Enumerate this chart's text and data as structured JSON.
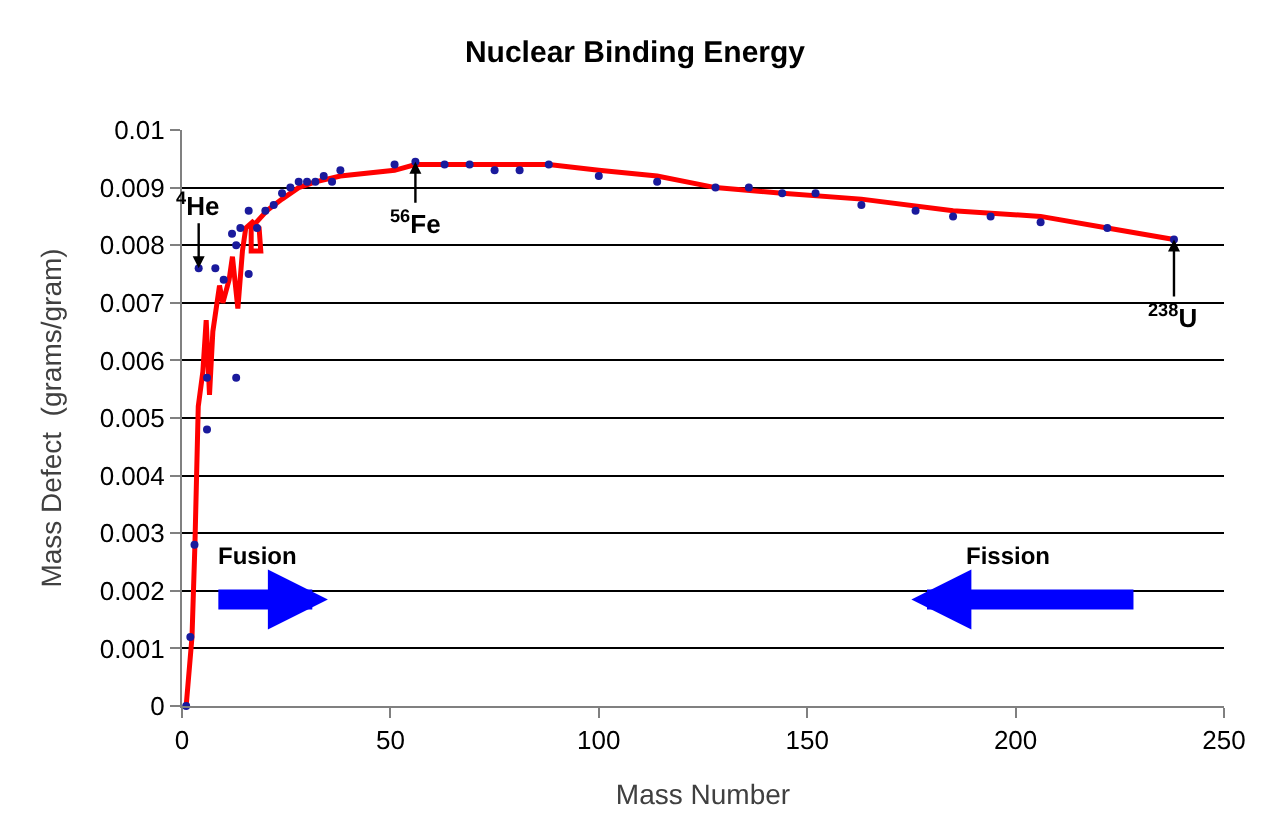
{
  "chart_data": {
    "type": "scatter",
    "title": "Nuclear Binding Energy",
    "xlabel": "Mass Number",
    "ylabel": "Mass Defect  (grams/gram)",
    "series": [
      {
        "color": "#1a1a9c",
        "marker": "circle",
        "x": [
          1,
          2,
          3,
          4,
          6,
          6,
          8,
          10,
          12,
          13,
          13,
          14,
          16,
          16,
          18,
          20,
          22,
          24,
          26,
          28,
          30,
          32,
          34,
          36,
          38,
          51,
          56,
          63,
          69,
          75,
          81,
          88,
          100,
          114,
          128,
          136,
          144,
          152,
          163,
          176,
          185,
          194,
          206,
          222,
          238
        ],
        "values": [
          0,
          0.0012,
          0.0028,
          0.0076,
          0.0057,
          0.0048,
          0.0076,
          0.0074,
          0.0082,
          0.0057,
          0.008,
          0.0083,
          0.0086,
          0.0075,
          0.0083,
          0.0086,
          0.0087,
          0.0089,
          0.009,
          0.0091,
          0.0091,
          0.0091,
          0.0092,
          0.0091,
          0.0093,
          0.0094,
          0.00945,
          0.0094,
          0.0094,
          0.0093,
          0.0093,
          0.0094,
          0.0092,
          0.0091,
          0.009,
          0.009,
          0.0089,
          0.0089,
          0.0087,
          0.0086,
          0.0085,
          0.0085,
          0.0084,
          0.0083,
          0.0081
        ]
      },
      {
        "type": "line",
        "color": "#ff0000",
        "marker": "none",
        "line_style": "solid",
        "x": [
          1,
          2.4,
          3.1,
          3.9,
          5,
          5.8,
          6.6,
          7.4,
          9,
          9.8,
          11.3,
          12.1,
          13.4,
          14.5,
          15.3,
          16.9,
          18.5,
          18.9,
          16.6,
          16.6,
          20.4,
          24,
          28,
          32,
          38,
          51,
          56,
          63,
          75,
          88,
          100,
          114,
          128,
          144,
          163,
          185,
          206,
          222,
          238
        ],
        "values": [
          0,
          0.0012,
          0.0028,
          0.0052,
          0.0058,
          0.0067,
          0.0054,
          0.0065,
          0.0073,
          0.007,
          0.0074,
          0.0078,
          0.0069,
          0.0079,
          0.0083,
          0.0084,
          0.0083,
          0.0079,
          0.0079,
          0.0083,
          0.0086,
          0.0088,
          0.009,
          0.0091,
          0.0092,
          0.0093,
          0.0094,
          0.0094,
          0.0094,
          0.0094,
          0.0093,
          0.0092,
          0.009,
          0.0089,
          0.0088,
          0.0086,
          0.0085,
          0.0083,
          0.0081
        ]
      }
    ],
    "xlim": [
      0,
      250
    ],
    "xticks": [
      0,
      50,
      100,
      150,
      200,
      250
    ],
    "ylim": [
      0,
      0.01
    ],
    "yticks": [
      0,
      0.001,
      0.002,
      0.003,
      0.004,
      0.005,
      0.006,
      0.007,
      0.008,
      0.009,
      0.01
    ],
    "grid": "y",
    "annotations": [
      {
        "text": "$^{4}$He",
        "x": 4,
        "y": 0.0076
      },
      {
        "text": "$^{56}$Fe",
        "x": 56,
        "y": 0.00945
      },
      {
        "text": "$^{238}$U",
        "x": 238,
        "y": 0.0081
      },
      "Fusion",
      "Fission"
    ]
  }
}
